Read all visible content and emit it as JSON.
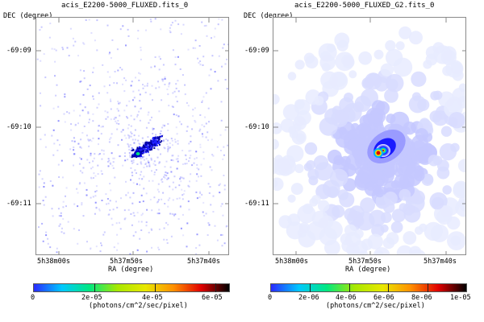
{
  "panels": [
    {
      "title": "acis_E2200-5000_FLUXED.fits_0",
      "dec_axis_label": "DEC (degree)",
      "ra_axis_label": "RA (degree)",
      "dec_ticks": [
        "-69:09",
        "-69:10",
        "-69:11"
      ],
      "ra_ticks": [
        "5h38m00s",
        "5h37m50s",
        "5h37m40s"
      ],
      "colorbar_ticks": [
        "0",
        "2e-05",
        "4e-05",
        "6e-05"
      ],
      "colorbar_units": "(photons/cm^2/sec/pixel)",
      "style": "sparse"
    },
    {
      "title": "acis_E2200-5000_FLUXED_G2.fits_0",
      "dec_axis_label": "DEC (degree)",
      "ra_axis_label": "RA (degree)",
      "dec_ticks": [
        "-69:09",
        "-69:10",
        "-69:11"
      ],
      "ra_ticks": [
        "5h38m00s",
        "5h37m50s",
        "5h37m40s"
      ],
      "colorbar_ticks": [
        "0",
        "2e-06",
        "4e-06",
        "6e-06",
        "8e-06",
        "1e-05"
      ],
      "colorbar_units": "(photons/cm^2/sec/pixel)",
      "style": "smooth"
    }
  ],
  "colormap": [
    "#1a1aff",
    "#00b0ff",
    "#00e0a0",
    "#60e000",
    "#e0e000",
    "#ff8000",
    "#e00000",
    "#400000"
  ]
}
